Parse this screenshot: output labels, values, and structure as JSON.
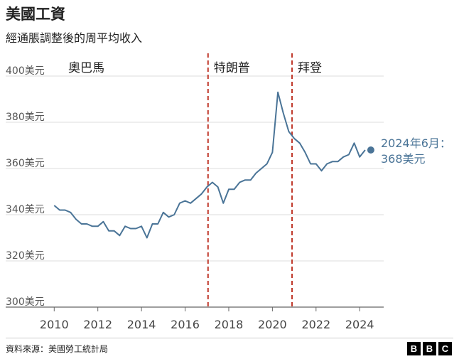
{
  "header": {
    "title": "美國工資",
    "subtitle": "經通脹調整後的周平均收入"
  },
  "footer": {
    "source": "資料來源：美國勞工統計局",
    "logo_letters": [
      "B",
      "B",
      "C"
    ]
  },
  "colors": {
    "line": "#4a7497",
    "divider": "#c0392b",
    "grid": "#dddddd",
    "axis": "#666666",
    "label": "#4a7497"
  },
  "chart_data": {
    "type": "line",
    "title": "",
    "xlabel": "",
    "ylabel": "",
    "ylim": [
      300,
      400
    ],
    "xlim": [
      2009.6,
      2025.1
    ],
    "xticks": [
      2010,
      2012,
      2014,
      2016,
      2018,
      2020,
      2022,
      2024
    ],
    "yticks": [
      300,
      320,
      340,
      360,
      380,
      400
    ],
    "y_tick_suffix": "美元",
    "grid": "horizontal",
    "series": [
      {
        "x": [
          2010.0,
          2010.25,
          2010.5,
          2010.75,
          2011.0,
          2011.25,
          2011.5,
          2011.75,
          2012.0,
          2012.25,
          2012.5,
          2012.75,
          2013.0,
          2013.25,
          2013.5,
          2013.75,
          2014.0,
          2014.25,
          2014.5,
          2014.75,
          2015.0,
          2015.25,
          2015.5,
          2015.75,
          2016.0,
          2016.25,
          2016.5,
          2016.75,
          2017.0,
          2017.25,
          2017.5,
          2017.75,
          2018.0,
          2018.25,
          2018.5,
          2018.75,
          2019.0,
          2019.25,
          2019.5,
          2019.75,
          2020.0,
          2020.25,
          2020.5,
          2020.75,
          2021.0,
          2021.25,
          2021.5,
          2021.75,
          2022.0,
          2022.25,
          2022.5,
          2022.75,
          2023.0,
          2023.25,
          2023.5,
          2023.75,
          2024.0,
          2024.25
        ],
        "values": [
          344,
          342,
          342,
          341,
          338,
          336,
          336,
          335,
          335,
          337,
          333,
          333,
          331,
          335,
          334,
          334,
          335,
          330,
          336,
          336,
          341,
          339,
          340,
          345,
          346,
          345,
          347,
          349,
          352,
          354,
          352,
          345,
          351,
          351,
          354,
          355,
          355,
          358,
          360,
          362,
          367,
          393,
          384,
          376,
          373,
          371,
          367,
          362,
          362,
          359,
          362,
          363,
          363,
          365,
          366,
          371,
          365,
          368
        ]
      }
    ],
    "periods": [
      {
        "label": "奧巴馬",
        "start": 2009.6,
        "end": 2017.05
      },
      {
        "label": "特朗普",
        "start": 2017.05,
        "end": 2020.9
      },
      {
        "label": "拜登",
        "start": 2020.9,
        "end": 2025.1
      }
    ],
    "dividers": [
      2017.05,
      2020.9
    ],
    "annotation": {
      "x": 2024.25,
      "y": 368,
      "lines": [
        "2024年6月：",
        "368美元"
      ]
    }
  }
}
